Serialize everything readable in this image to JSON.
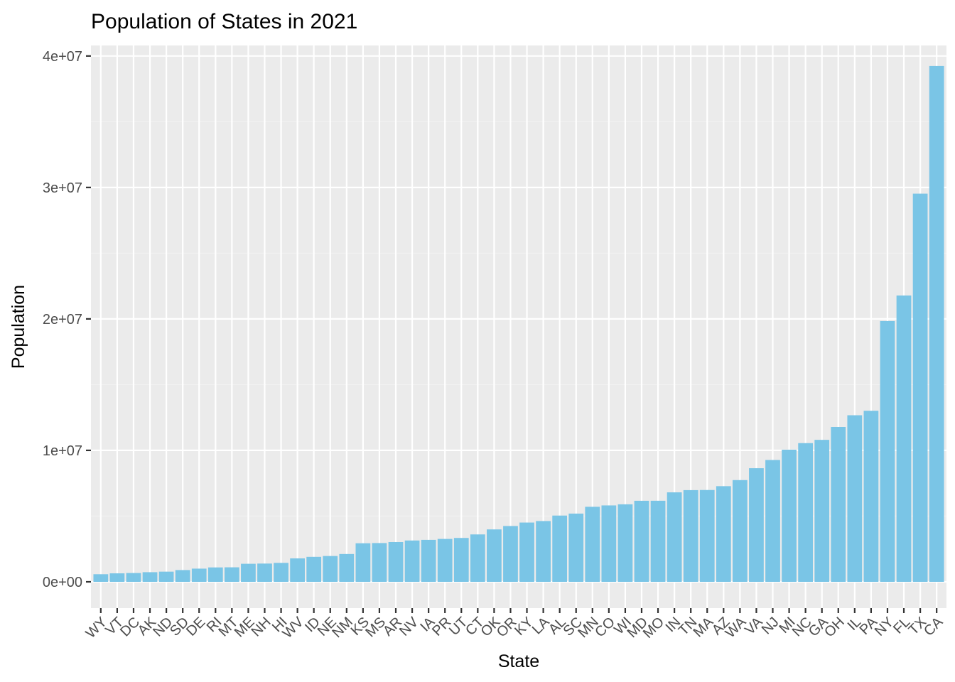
{
  "chart_data": {
    "type": "bar",
    "title": "Population of States in 2021",
    "xlabel": "State",
    "ylabel": "Population",
    "ylim": [
      -2000000,
      40800000
    ],
    "yticks": [
      {
        "value": 0,
        "label": "0e+00"
      },
      {
        "value": 10000000,
        "label": "1e+07"
      },
      {
        "value": 20000000,
        "label": "2e+07"
      },
      {
        "value": 30000000,
        "label": "3e+07"
      },
      {
        "value": 40000000,
        "label": "4e+07"
      }
    ],
    "grid": true,
    "legend": "none",
    "categories": [
      "WY",
      "VT",
      "DC",
      "AK",
      "ND",
      "SD",
      "DE",
      "RI",
      "MT",
      "ME",
      "NH",
      "HI",
      "WV",
      "ID",
      "NE",
      "NM",
      "KS",
      "MS",
      "AR",
      "NV",
      "IA",
      "PR",
      "UT",
      "CT",
      "OK",
      "OR",
      "KY",
      "LA",
      "AL",
      "SC",
      "MN",
      "CO",
      "WI",
      "MD",
      "MO",
      "IN",
      "TN",
      "MA",
      "AZ",
      "WA",
      "VA",
      "NJ",
      "MI",
      "NC",
      "GA",
      "OH",
      "IL",
      "PA",
      "NY",
      "FL",
      "TX",
      "CA"
    ],
    "values": [
      578803,
      645570,
      670050,
      732673,
      774948,
      895376,
      1003384,
      1095610,
      1104271,
      1372247,
      1388992,
      1441553,
      1782959,
      1900923,
      1963692,
      2115877,
      2934582,
      2949965,
      3025891,
      3143991,
      3193079,
      3263584,
      3337975,
      3605597,
      3986639,
      4246155,
      4509394,
      4624047,
      5039877,
      5190705,
      5707390,
      5812069,
      5895908,
      6165129,
      6168187,
      6805985,
      6975218,
      6984723,
      7276316,
      7738692,
      8642274,
      9267130,
      10050811,
      10551162,
      10799566,
      11780017,
      12671469,
      13012059,
      19835913,
      21781128,
      29527941,
      39237836
    ]
  },
  "colors": {
    "bar": "#7AC5E6",
    "panel": "#EBEBEB",
    "grid_major": "#FFFFFF",
    "grid_minor": "#F2F2F2",
    "axis_text": "#4D4D4D",
    "tick": "#333333"
  }
}
